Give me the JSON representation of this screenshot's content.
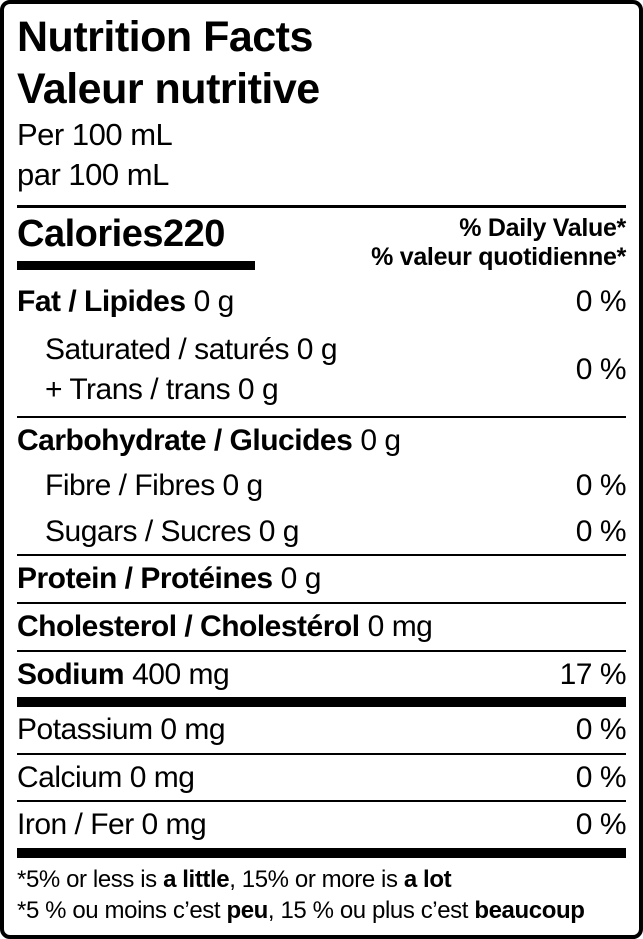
{
  "label": {
    "title_en": "Nutrition Facts",
    "title_fr": "Valeur nutritive",
    "serving_en": "Per 100 mL",
    "serving_fr": "par 100 mL",
    "calories": {
      "label": "Calories",
      "value": "220"
    },
    "dv_header_en": "% Daily Value*",
    "dv_header_fr": "% valeur quotidienne*",
    "colors": {
      "text": "#000000",
      "background": "#ffffff",
      "rule": "#000000"
    },
    "nutrients": {
      "fat": {
        "name": "Fat / Lipides",
        "amount": "0 g",
        "dv": "0 %"
      },
      "sat_trans": {
        "line1": "Saturated / saturés 0 g",
        "line2": "+ Trans / trans 0 g",
        "dv": "0 %"
      },
      "carbohydrate": {
        "name": "Carbohydrate / Glucides",
        "amount": "0 g"
      },
      "fibre": {
        "text": "Fibre / Fibres 0 g",
        "dv": "0 %"
      },
      "sugars": {
        "text": "Sugars / Sucres 0 g",
        "dv": "0 %"
      },
      "protein": {
        "name": "Protein / Protéines",
        "amount": "0 g"
      },
      "cholesterol": {
        "name": "Cholesterol / Cholestérol",
        "amount": "0 mg"
      },
      "sodium": {
        "name": "Sodium",
        "amount": "400 mg",
        "dv": "17 %"
      },
      "potassium": {
        "text": "Potassium 0 mg",
        "dv": "0 %"
      },
      "calcium": {
        "text": "Calcium 0 mg",
        "dv": "0 %"
      },
      "iron": {
        "text": "Iron / Fer 0 mg",
        "dv": "0 %"
      }
    },
    "footnote_en": {
      "p1": "*5% or less is",
      "b1": "a little",
      "p2": ", 15% or more is",
      "b2": "a lot"
    },
    "footnote_fr": {
      "p1": "*5 % ou moins c’est",
      "b1": "peu",
      "p2": ", 15 % ou plus c’est",
      "b2": "beaucoup"
    }
  }
}
